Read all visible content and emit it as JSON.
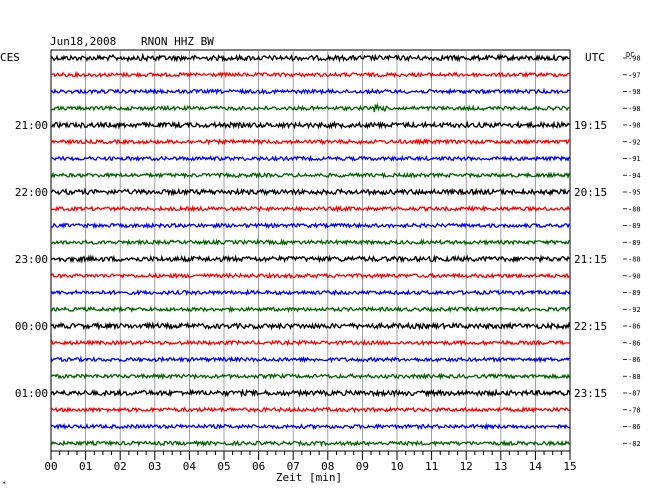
{
  "header": {
    "date": "Jun18,2008",
    "station": "RNON HHZ BW",
    "left_tz": "CES",
    "right_tz": "UTC",
    "dc_label": "DC"
  },
  "chart_data": {
    "type": "line",
    "title": "Jun18,2008   RNON HHZ BW",
    "xlabel": "Zeit [min]",
    "x_ticks": [
      "00",
      "01",
      "02",
      "03",
      "04",
      "05",
      "06",
      "07",
      "08",
      "09",
      "10",
      "11",
      "12",
      "13",
      "14",
      "15"
    ],
    "xlim": [
      0,
      15
    ],
    "minor_ticks_per_minute": 4,
    "grid": true,
    "left_hour_labels": [
      "21:00",
      "22:00",
      "23:00",
      "00:00",
      "01:00"
    ],
    "right_hour_labels": [
      "19:15",
      "20:15",
      "21:15",
      "22:15",
      "23:15"
    ],
    "trace_colors": [
      "#000000",
      "#ff0000",
      "#0000ff",
      "#006600"
    ],
    "dc_offsets": [
      -98,
      -97,
      -98,
      -98,
      -98,
      -92,
      -91,
      -94,
      -95,
      -88,
      -89,
      -89,
      -88,
      -90,
      -89,
      -92,
      -86,
      -86,
      -86,
      -88,
      -87,
      -78,
      -86,
      -82
    ],
    "trace_count": 24
  }
}
